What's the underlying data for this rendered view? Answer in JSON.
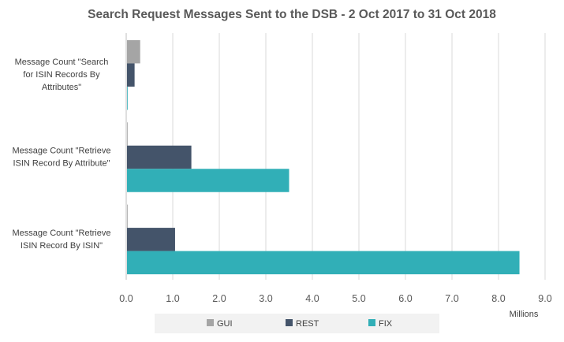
{
  "chart_data": {
    "type": "bar",
    "orientation": "horizontal",
    "title": "Search Request Messages Sent to the DSB - 2 Oct 2017 to 31 Oct 2018",
    "categories": [
      [
        "Message Count \"Search",
        "for ISIN Records By",
        "Attributes\""
      ],
      [
        "Message Count \"Retrieve",
        "ISIN Record By Attribute\""
      ],
      [
        "Message Count  \"Retrieve",
        "ISIN Record By ISIN\""
      ]
    ],
    "series": [
      {
        "name": "GUI",
        "color": "#a5a5a5",
        "values": [
          0.3,
          0.0,
          0.01
        ]
      },
      {
        "name": "REST",
        "color": "#44546a",
        "values": [
          0.18,
          1.4,
          1.05
        ]
      },
      {
        "name": "FIX",
        "color": "#31afb7",
        "values": [
          0.02,
          3.5,
          8.45
        ]
      }
    ],
    "xlim": [
      0,
      9
    ],
    "xticks": [
      "0.0",
      "1.0",
      "2.0",
      "3.0",
      "4.0",
      "5.0",
      "6.0",
      "7.0",
      "8.0",
      "9.0"
    ],
    "unit_label": "Millions",
    "grid": true,
    "legend_position": "bottom"
  }
}
